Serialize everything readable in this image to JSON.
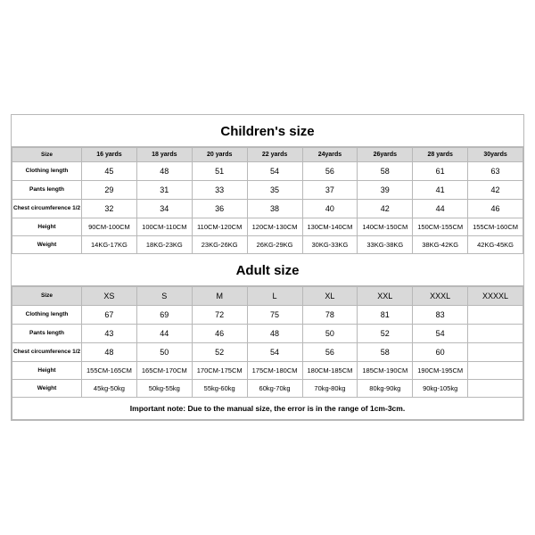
{
  "children": {
    "title": "Children's size",
    "row_labels": [
      "Size",
      "Clothing length",
      "Pants length",
      "Chest circumference 1/2",
      "Height",
      "Weight"
    ],
    "header": [
      "16 yards",
      "18 yards",
      "20 yards",
      "22 yards",
      "24yards",
      "26yards",
      "28 yards",
      "30yards"
    ],
    "clothing_length": [
      "45",
      "48",
      "51",
      "54",
      "56",
      "58",
      "61",
      "63"
    ],
    "pants_length": [
      "29",
      "31",
      "33",
      "35",
      "37",
      "39",
      "41",
      "42"
    ],
    "chest": [
      "32",
      "34",
      "36",
      "38",
      "40",
      "42",
      "44",
      "46"
    ],
    "height": [
      "90CM-100CM",
      "100CM-110CM",
      "110CM-120CM",
      "120CM-130CM",
      "130CM-140CM",
      "140CM-150CM",
      "150CM-155CM",
      "155CM-160CM"
    ],
    "weight": [
      "14KG-17KG",
      "18KG-23KG",
      "23KG-26KG",
      "26KG-29KG",
      "30KG-33KG",
      "33KG-38KG",
      "38KG-42KG",
      "42KG-45KG"
    ]
  },
  "adult": {
    "title": "Adult size",
    "row_labels": [
      "Size",
      "Clothing length",
      "Pants length",
      "Chest circumference 1/2",
      "Height",
      "Weight"
    ],
    "header": [
      "XS",
      "S",
      "M",
      "L",
      "XL",
      "XXL",
      "XXXL",
      "XXXXL"
    ],
    "clothing_length": [
      "67",
      "69",
      "72",
      "75",
      "78",
      "81",
      "83",
      ""
    ],
    "pants_length": [
      "43",
      "44",
      "46",
      "48",
      "50",
      "52",
      "54",
      ""
    ],
    "chest": [
      "48",
      "50",
      "52",
      "54",
      "56",
      "58",
      "60",
      ""
    ],
    "height": [
      "155CM-165CM",
      "165CM-170CM",
      "170CM-175CM",
      "175CM-180CM",
      "180CM-185CM",
      "185CM-190CM",
      "190CM-195CM",
      ""
    ],
    "weight": [
      "45kg-50kg",
      "50kg-55kg",
      "55kg-60kg",
      "60kg-70kg",
      "70kg-80kg",
      "80kg-90kg",
      "90kg-105kg",
      ""
    ]
  },
  "note": "Important note: Due to the manual size, the error is in the range of 1cm-3cm."
}
